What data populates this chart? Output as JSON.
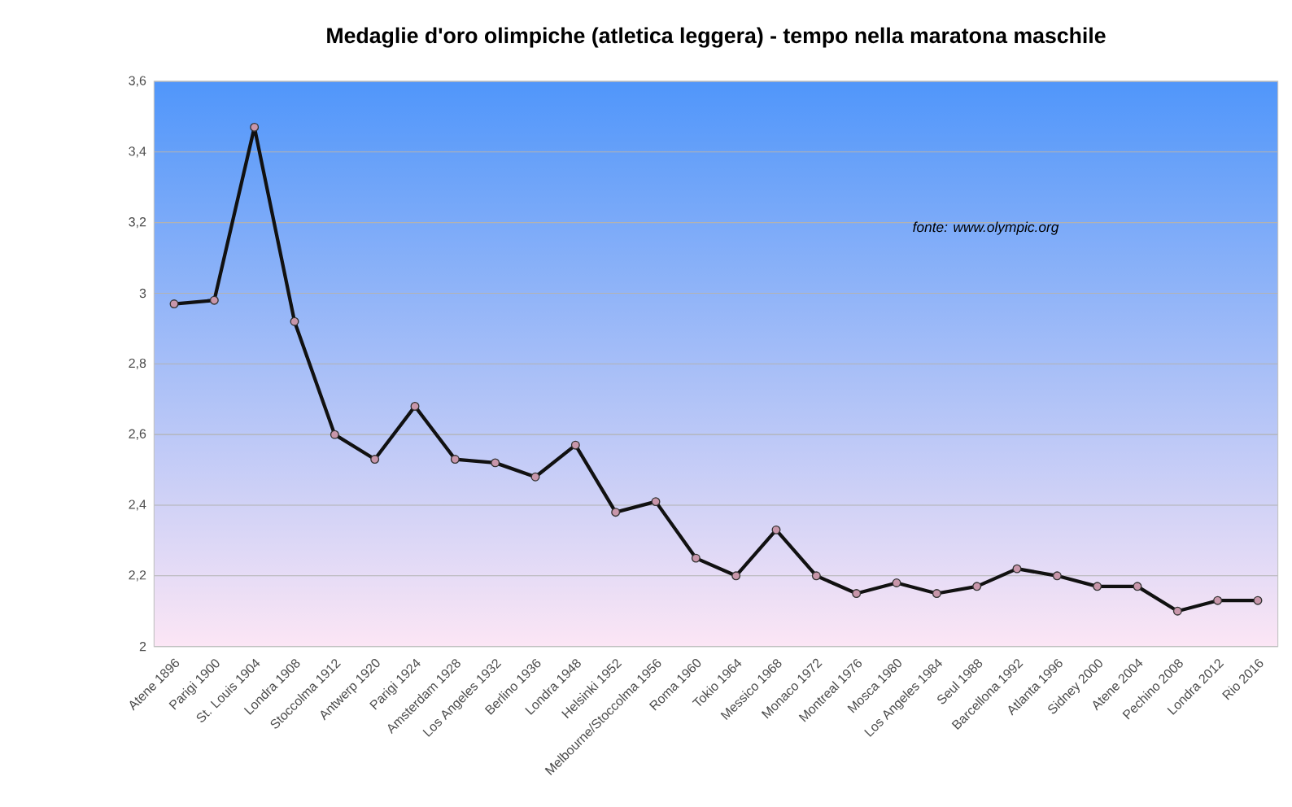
{
  "chart_data": {
    "type": "line",
    "title": "Medaglie d'oro olimpiche (atletica leggera) - tempo nella maratona maschile",
    "categories": [
      "Atene 1896",
      "Parigi 1900",
      "St. Louis 1904",
      "Londra 1908",
      "Stoccolma 1912",
      "Antwerp 1920",
      "Parigi 1924",
      "Amsterdam 1928",
      "Los Angeles 1932",
      "Berlino 1936",
      "Londra 1948",
      "Helsinki 1952",
      "Melbourne/Stoccolma 1956",
      "Roma 1960",
      "Tokio 1964",
      "Messico 1968",
      "Monaco 1972",
      "Montreal 1976",
      "Mosca 1980",
      "Los Angeles 1984",
      "Seul 1988",
      "Barcellona 1992",
      "Atlanta 1996",
      "Sidney 2000",
      "Atene 2004",
      "Pechino 2008",
      "Londra 2012",
      "Rio 2016"
    ],
    "series": [
      {
        "color": "#111111",
        "values": [
          2.97,
          2.98,
          3.47,
          2.92,
          2.6,
          2.53,
          2.68,
          2.53,
          2.52,
          2.48,
          2.57,
          2.38,
          2.41,
          2.25,
          2.2,
          2.33,
          2.2,
          2.15,
          2.18,
          2.15,
          2.17,
          2.22,
          2.2,
          2.17,
          2.17,
          2.1,
          2.13,
          2.13
        ]
      }
    ],
    "ylim": [
      2,
      3.6
    ],
    "yticks": [
      {
        "value": 2,
        "label": "2"
      },
      {
        "value": 2.2,
        "label": "2,2"
      },
      {
        "value": 2.4,
        "label": "2,4"
      },
      {
        "value": 2.6,
        "label": "2,6"
      },
      {
        "value": 2.8,
        "label": "2,8"
      },
      {
        "value": 3,
        "label": "3"
      },
      {
        "value": 3.2,
        "label": "3,2"
      },
      {
        "value": 3.4,
        "label": "3,4"
      },
      {
        "value": 3.6,
        "label": "3,6"
      }
    ],
    "grid": "y",
    "marker": "circle",
    "line_style": "solid",
    "annotations": [
      "fonte: www.olympic.org"
    ]
  }
}
